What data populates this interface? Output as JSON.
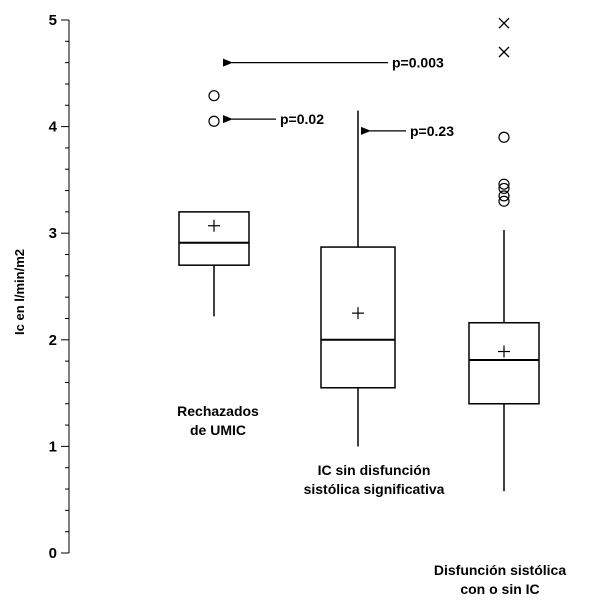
{
  "chart_data": {
    "type": "box",
    "ylabel": "Ic en l/min/m2",
    "ylim": [
      0,
      5
    ],
    "y_ticks": [
      0,
      1,
      2,
      3,
      4,
      5
    ],
    "grid": false,
    "groups": [
      {
        "label_lines": [
          "Rechazados",
          "de UMIC"
        ],
        "whisker_low": 2.22,
        "q1": 2.7,
        "median": 2.91,
        "q3": 3.2,
        "whisker_high": 3.2,
        "mean": 3.07,
        "outliers_circle": [
          4.05,
          4.29
        ],
        "outliers_cross": []
      },
      {
        "label_lines": [
          "IC sin disfunción",
          "sistólica significativa"
        ],
        "whisker_low": 1.0,
        "q1": 1.55,
        "median": 2.0,
        "q3": 2.87,
        "whisker_high": 4.15,
        "mean": 2.25,
        "outliers_circle": [],
        "outliers_cross": []
      },
      {
        "label_lines": [
          "Disfunción sistólica",
          "con o sin IC"
        ],
        "whisker_low": 0.58,
        "q1": 1.4,
        "median": 1.81,
        "q3": 2.16,
        "whisker_high": 3.03,
        "mean": 1.89,
        "outliers_circle": [
          3.3,
          3.35,
          3.42,
          3.46,
          3.9
        ],
        "outliers_cross": [
          4.7,
          4.97
        ]
      }
    ],
    "annotations": [
      {
        "text": "p=0.003",
        "y": 4.6
      },
      {
        "text": "p=0.02",
        "y": 4.07
      },
      {
        "text": "p=0.23",
        "y": 3.96
      }
    ]
  }
}
